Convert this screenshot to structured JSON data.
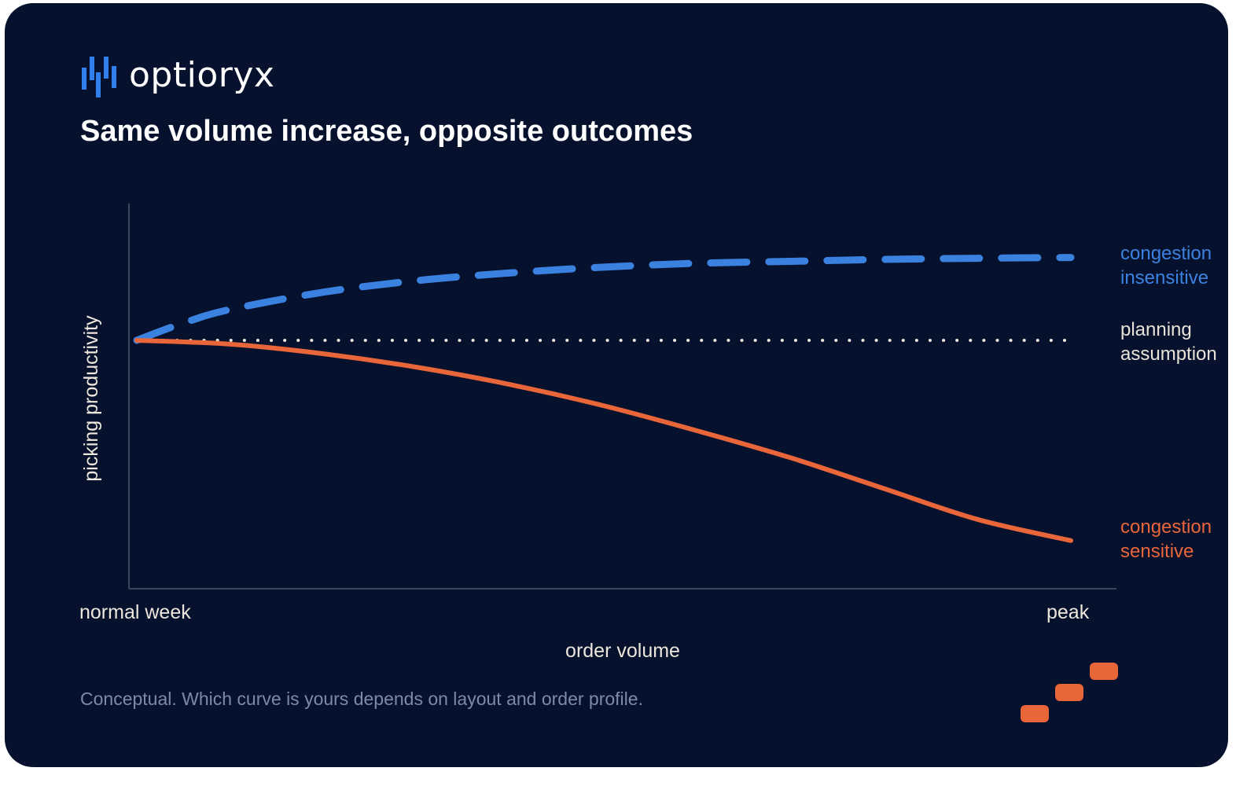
{
  "brand": {
    "name": "optioryx",
    "mark_color": "#2f80ed"
  },
  "title": "Same volume increase, opposite outcomes",
  "footnote": "Conceptual. Which curve is yours depends on layout and order profile.",
  "colors": {
    "background": "#06112d",
    "insensitive": "#3b82e0",
    "sensitive": "#e8663a",
    "planning": "#e8e2d8",
    "axis": "#3a4560",
    "accent": "#e8663a"
  },
  "chart_data": {
    "type": "line",
    "xlabel": "order volume",
    "ylabel": "picking productivity",
    "x_tick_labels": [
      "normal week",
      "peak"
    ],
    "xlim": [
      0,
      1
    ],
    "ylim": [
      0,
      1
    ],
    "grid": false,
    "legend": "direct labels at right end of each line",
    "series": [
      {
        "name": "congestion insensitive",
        "style": "dashed",
        "color": "#3b82e0",
        "x": [
          0,
          0.05,
          0.1,
          0.2,
          0.3,
          0.4,
          0.5,
          0.6,
          0.7,
          0.8,
          0.9,
          1.0
        ],
        "y": [
          0.645,
          0.69,
          0.725,
          0.77,
          0.8,
          0.82,
          0.835,
          0.845,
          0.85,
          0.855,
          0.858,
          0.86
        ]
      },
      {
        "name": "planning assumption",
        "style": "dotted",
        "color": "#e8e2d8",
        "x": [
          0,
          1.0
        ],
        "y": [
          0.645,
          0.645
        ]
      },
      {
        "name": "congestion sensitive",
        "style": "solid",
        "color": "#e8663a",
        "x": [
          0,
          0.1,
          0.2,
          0.3,
          0.4,
          0.5,
          0.6,
          0.7,
          0.8,
          0.9,
          1.0
        ],
        "y": [
          0.645,
          0.635,
          0.61,
          0.575,
          0.53,
          0.475,
          0.41,
          0.34,
          0.26,
          0.18,
          0.125
        ]
      }
    ],
    "labels": [
      {
        "line1": "congestion",
        "line2": "insensitive",
        "color": "#3b82e0"
      },
      {
        "line1": "planning",
        "line2": "assumption",
        "color": "#e8e2d8"
      },
      {
        "line1": "congestion",
        "line2": "sensitive",
        "color": "#e8663a"
      }
    ]
  }
}
